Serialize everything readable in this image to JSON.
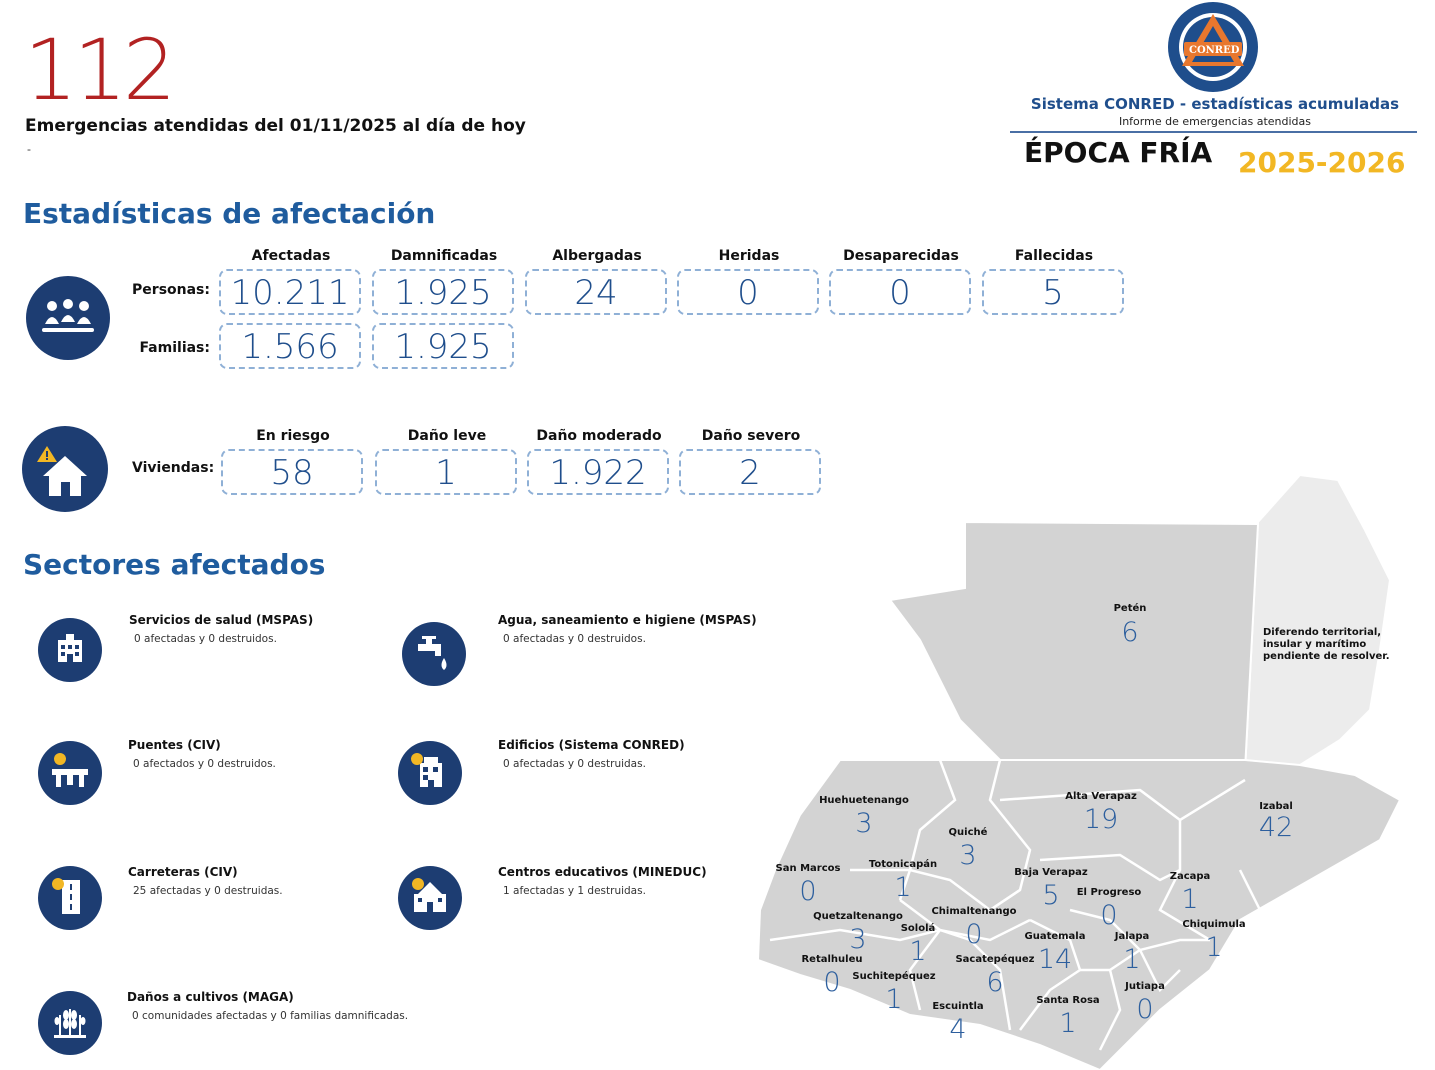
{
  "header": {
    "total": "112",
    "subtitle": "Emergencias atendidas del 01/11/2025 al día de hoy",
    "note": "-"
  },
  "brand": {
    "system_title": "Sistema CONRED - estadísticas acumuladas",
    "report_subtitle": "Informe de emergencias atendidas",
    "season": "ÉPOCA FRÍA",
    "years": "2025-2026",
    "logo_text": "CONRED",
    "colors": {
      "navy": "#1d3d72",
      "blue": "#1f5c9e",
      "red": "#b22222",
      "gold": "#f2b724",
      "orange": "#e8772e"
    }
  },
  "stats": {
    "title": "Estadísticas de afectación",
    "people": {
      "icon": "people-group-icon",
      "columns": [
        "Afectadas",
        "Damnificadas",
        "Albergadas",
        "Heridas",
        "Desaparecidas",
        "Fallecidas"
      ],
      "persons_label": "Personas:",
      "persons": [
        "10.211",
        "1.925",
        "24",
        "0",
        "0",
        "5"
      ],
      "families_label": "Familias:",
      "families": [
        "1.566",
        "1.925"
      ]
    },
    "housing": {
      "icon": "house-warning-icon",
      "columns": [
        "En riesgo",
        "Daño leve",
        "Daño moderado",
        "Daño severo"
      ],
      "label": "Viviendas:",
      "values": [
        "58",
        "1",
        "1.922",
        "2"
      ]
    }
  },
  "sectors": {
    "title": "Sectores afectados",
    "items": [
      {
        "icon": "hospital-icon",
        "title": "Servicios de salud (MSPAS)",
        "text": "0 afectadas y 0 destruidos."
      },
      {
        "icon": "water-tap-icon",
        "title": "Agua, saneamiento e higiene (MSPAS)",
        "text": "0 afectadas y 0 destruidos."
      },
      {
        "icon": "bridge-icon",
        "title": "Puentes (CIV)",
        "text": "0 afectados y 0 destruidos."
      },
      {
        "icon": "building-icon",
        "title": "Edificios (Sistema CONRED)",
        "text": "0 afectadas y 0 destruidas."
      },
      {
        "icon": "road-icon",
        "title": "Carreteras (CIV)",
        "text": "25 afectadas y 0 destruidas."
      },
      {
        "icon": "school-icon",
        "title": "Centros educativos (MINEDUC)",
        "text": "1 afectadas y 1 destruidas."
      },
      {
        "icon": "crops-icon",
        "title": "Daños a cultivos (MAGA)",
        "text": "0 comunidades afectadas y 0 familias damnificadas."
      }
    ]
  },
  "map": {
    "belize_note": "Diferendo territorial, insular y marítimo pendiente de resolver.",
    "departments": [
      {
        "name": "Petén",
        "value": "6"
      },
      {
        "name": "Huehuetenango",
        "value": "3"
      },
      {
        "name": "Alta Verapaz",
        "value": "19"
      },
      {
        "name": "Izabal",
        "value": "42"
      },
      {
        "name": "Quiché",
        "value": "3"
      },
      {
        "name": "San Marcos",
        "value": "0"
      },
      {
        "name": "Totonicapán",
        "value": "1"
      },
      {
        "name": "Baja Verapaz",
        "value": "5"
      },
      {
        "name": "Zacapa",
        "value": "1"
      },
      {
        "name": "El Progreso",
        "value": "0"
      },
      {
        "name": "Quetzaltenango",
        "value": "3"
      },
      {
        "name": "Chimaltenango",
        "value": "0"
      },
      {
        "name": "Chiquimula",
        "value": "1"
      },
      {
        "name": "Sololá",
        "value": "1"
      },
      {
        "name": "Guatemala",
        "value": "14"
      },
      {
        "name": "Jalapa",
        "value": "1"
      },
      {
        "name": "Retalhuleu",
        "value": "0"
      },
      {
        "name": "Sacatepéquez",
        "value": "6"
      },
      {
        "name": "Suchitepéquez",
        "value": "1"
      },
      {
        "name": "Jutiapa",
        "value": "0"
      },
      {
        "name": "Santa Rosa",
        "value": "1"
      },
      {
        "name": "Escuintla",
        "value": "4"
      }
    ]
  }
}
